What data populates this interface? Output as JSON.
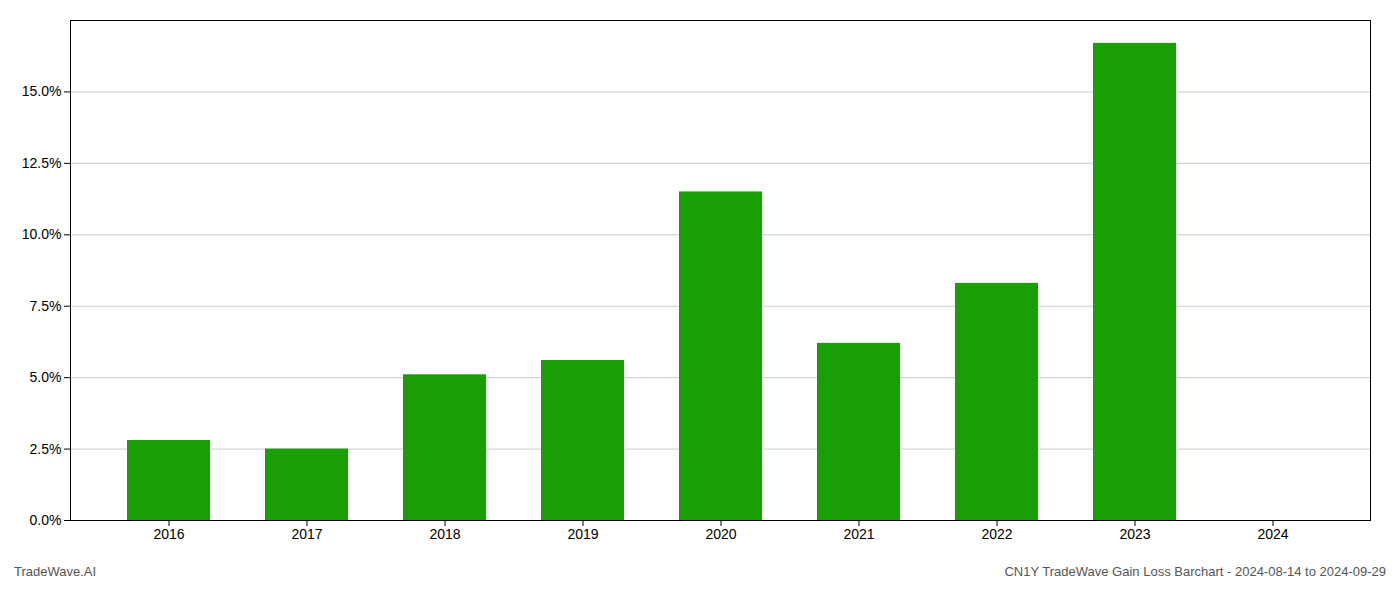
{
  "chart_data": {
    "type": "bar",
    "categories": [
      "2016",
      "2017",
      "2018",
      "2019",
      "2020",
      "2021",
      "2022",
      "2023",
      "2024"
    ],
    "values": [
      0.028,
      0.025,
      0.051,
      0.056,
      0.115,
      0.062,
      0.083,
      0.167,
      0.0
    ],
    "color": "#1a9e06",
    "ylim": [
      0,
      0.175
    ],
    "yticks": [
      {
        "value": 0.0,
        "label": "0.0%"
      },
      {
        "value": 0.025,
        "label": "2.5%"
      },
      {
        "value": 0.05,
        "label": "5.0%"
      },
      {
        "value": 0.075,
        "label": "7.5%"
      },
      {
        "value": 0.1,
        "label": "10.0%"
      },
      {
        "value": 0.125,
        "label": "12.5%"
      },
      {
        "value": 0.15,
        "label": "15.0%"
      }
    ],
    "grid": true,
    "annotations": [
      "TradeWave.AI",
      "CN1Y TradeWave Gain Loss Barchart - 2024-08-14 to 2024-09-29"
    ]
  }
}
